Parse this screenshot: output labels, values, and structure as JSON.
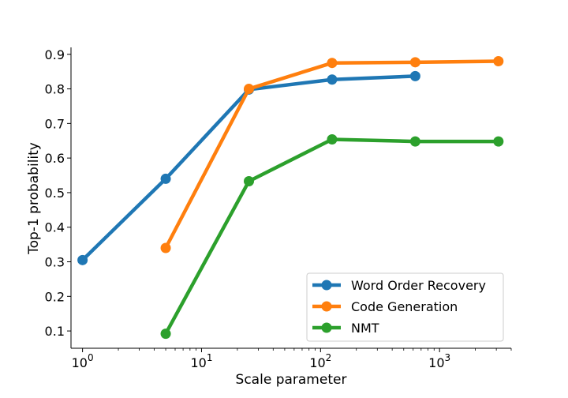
{
  "chart_data": {
    "type": "line",
    "xscale": "log",
    "xlabel": "Scale parameter",
    "ylabel": "Top-1 probability",
    "xlim": [
      0.8,
      4000
    ],
    "ylim": [
      0.05,
      0.92
    ],
    "xticks": [
      {
        "value": 1,
        "base": "10",
        "exp": "0"
      },
      {
        "value": 10,
        "base": "10",
        "exp": "1"
      },
      {
        "value": 100,
        "base": "10",
        "exp": "2"
      },
      {
        "value": 1000,
        "base": "10",
        "exp": "3"
      }
    ],
    "yticks": [
      "0.1",
      "0.2",
      "0.3",
      "0.4",
      "0.5",
      "0.6",
      "0.7",
      "0.8",
      "0.9"
    ],
    "legend_position": "lower-right",
    "series": [
      {
        "name": "Word Order Recovery",
        "color": "#1f77b4",
        "x": [
          1,
          5,
          25,
          125,
          625
        ],
        "y": [
          0.305,
          0.54,
          0.798,
          0.827,
          0.837
        ]
      },
      {
        "name": "Code Generation",
        "color": "#ff7f0e",
        "x": [
          5,
          25,
          125,
          625,
          3125
        ],
        "y": [
          0.34,
          0.8,
          0.875,
          0.877,
          0.88
        ]
      },
      {
        "name": "NMT",
        "color": "#2ca02c",
        "x": [
          5,
          25,
          125,
          625,
          3125
        ],
        "y": [
          0.092,
          0.533,
          0.654,
          0.648,
          0.648
        ]
      }
    ]
  }
}
